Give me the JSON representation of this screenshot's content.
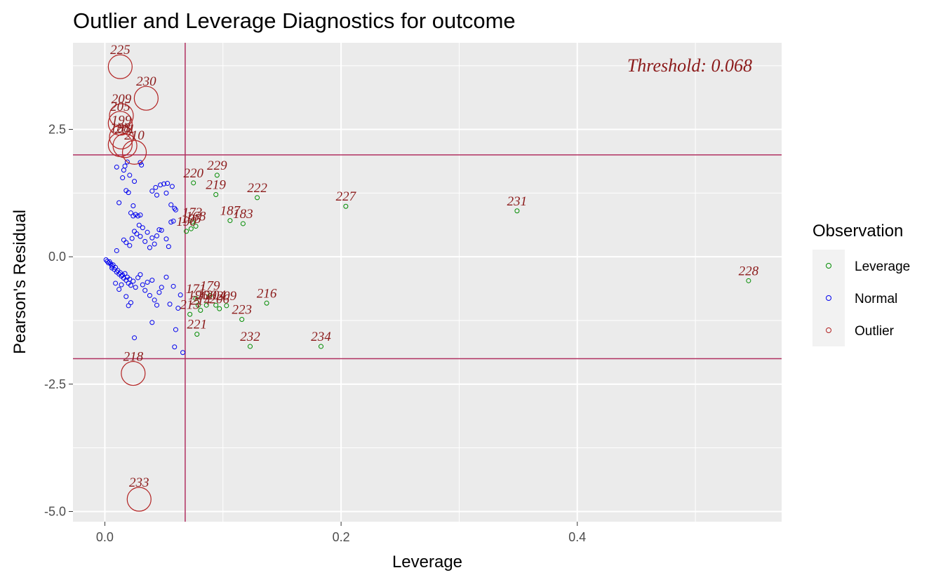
{
  "chart_data": {
    "type": "scatter",
    "title": "Outlier and Leverage Diagnostics for outcome",
    "xlabel": "Leverage",
    "ylabel": "Pearson's Residual",
    "xlim": [
      -0.027,
      0.573
    ],
    "ylim": [
      -5.2,
      4.2
    ],
    "x_ticks": [
      0.0,
      0.2,
      0.4
    ],
    "x_tick_labels": [
      "0.0",
      "0.2",
      "0.4"
    ],
    "y_ticks": [
      -5.0,
      -2.5,
      0.0,
      2.5
    ],
    "y_tick_labels": [
      "-5.0",
      "-2.5",
      "0.0",
      "2.5"
    ],
    "grid": true,
    "threshold_text": "Threshold: 0.068",
    "leverage_threshold": 0.068,
    "residual_thresholds": [
      -2,
      2
    ],
    "colors": {
      "panel": "#ebebeb",
      "grid": "#ffffff",
      "ref_line": "#b03060",
      "Leverage": "#008b00",
      "Normal": "#0000ee",
      "Outlier": "#b22222",
      "label": "#8b1a1a"
    },
    "legend": {
      "title": "Observation",
      "position": "right",
      "items": [
        "Leverage",
        "Normal",
        "Outlier"
      ]
    },
    "series": [
      {
        "name": "Outlier",
        "points": [
          {
            "x": 0.013,
            "y": 3.73,
            "label": "225"
          },
          {
            "x": 0.035,
            "y": 3.11,
            "label": "230"
          },
          {
            "x": 0.014,
            "y": 2.77,
            "label": "209"
          },
          {
            "x": 0.013,
            "y": 2.62,
            "label": "205"
          },
          {
            "x": 0.014,
            "y": 2.35,
            "label": "199"
          },
          {
            "x": 0.013,
            "y": 2.2,
            "label": "188"
          },
          {
            "x": 0.017,
            "y": 2.18,
            "label": "201"
          },
          {
            "x": 0.025,
            "y": 2.05,
            "label": "210"
          },
          {
            "x": 0.024,
            "y": -2.29,
            "label": "218"
          },
          {
            "x": 0.029,
            "y": -4.76,
            "label": "233"
          }
        ]
      },
      {
        "name": "Leverage",
        "points": [
          {
            "x": 0.075,
            "y": 1.45,
            "label": "220"
          },
          {
            "x": 0.095,
            "y": 1.6,
            "label": "229"
          },
          {
            "x": 0.094,
            "y": 1.22,
            "label": "219"
          },
          {
            "x": 0.129,
            "y": 1.16,
            "label": "222"
          },
          {
            "x": 0.204,
            "y": 0.99,
            "label": "227"
          },
          {
            "x": 0.349,
            "y": 0.9,
            "label": "231"
          },
          {
            "x": 0.106,
            "y": 0.71,
            "label": "187"
          },
          {
            "x": 0.117,
            "y": 0.65,
            "label": "183"
          },
          {
            "x": 0.074,
            "y": 0.68,
            "label": "173"
          },
          {
            "x": 0.077,
            "y": 0.6,
            "label": "168"
          },
          {
            "x": 0.073,
            "y": 0.55,
            "label": "195"
          },
          {
            "x": 0.069,
            "y": 0.5,
            "label": "190"
          },
          {
            "x": 0.545,
            "y": -0.47,
            "label": "228"
          },
          {
            "x": 0.077,
            "y": -0.82,
            "label": "171"
          },
          {
            "x": 0.089,
            "y": -0.76,
            "label": "179"
          },
          {
            "x": 0.137,
            "y": -0.91,
            "label": "216"
          },
          {
            "x": 0.079,
            "y": -0.95,
            "label": "196"
          },
          {
            "x": 0.086,
            "y": -0.95,
            "label": "200"
          },
          {
            "x": 0.094,
            "y": -0.95,
            "label": "204"
          },
          {
            "x": 0.097,
            "y": -1.02,
            "label": "206"
          },
          {
            "x": 0.103,
            "y": -0.96,
            "label": "209"
          },
          {
            "x": 0.081,
            "y": -1.05,
            "label": "214"
          },
          {
            "x": 0.116,
            "y": -1.23,
            "label": "223"
          },
          {
            "x": 0.072,
            "y": -1.13,
            "label": "213"
          },
          {
            "x": 0.078,
            "y": -1.52,
            "label": "221"
          },
          {
            "x": 0.123,
            "y": -1.76,
            "label": "232"
          },
          {
            "x": 0.183,
            "y": -1.76,
            "label": "234"
          }
        ]
      },
      {
        "name": "Normal",
        "points": [
          {
            "x": 0.001,
            "y": -0.06
          },
          {
            "x": 0.002,
            "y": -0.09
          },
          {
            "x": 0.003,
            "y": -0.12
          },
          {
            "x": 0.004,
            "y": -0.1
          },
          {
            "x": 0.005,
            "y": -0.14
          },
          {
            "x": 0.006,
            "y": -0.18
          },
          {
            "x": 0.006,
            "y": -0.22
          },
          {
            "x": 0.007,
            "y": -0.16
          },
          {
            "x": 0.008,
            "y": -0.25
          },
          {
            "x": 0.009,
            "y": -0.21
          },
          {
            "x": 0.01,
            "y": -0.3
          },
          {
            "x": 0.011,
            "y": -0.27
          },
          {
            "x": 0.012,
            "y": -0.34
          },
          {
            "x": 0.013,
            "y": -0.31
          },
          {
            "x": 0.014,
            "y": -0.38
          },
          {
            "x": 0.015,
            "y": -0.36
          },
          {
            "x": 0.016,
            "y": -0.42
          },
          {
            "x": 0.017,
            "y": -0.33
          },
          {
            "x": 0.018,
            "y": -0.46
          },
          {
            "x": 0.019,
            "y": -0.4
          },
          {
            "x": 0.02,
            "y": -0.52
          },
          {
            "x": 0.021,
            "y": -0.44
          },
          {
            "x": 0.022,
            "y": -0.56
          },
          {
            "x": 0.024,
            "y": -0.48
          },
          {
            "x": 0.026,
            "y": -0.6
          },
          {
            "x": 0.028,
            "y": -0.41
          },
          {
            "x": 0.03,
            "y": -0.35
          },
          {
            "x": 0.032,
            "y": -0.55
          },
          {
            "x": 0.034,
            "y": -0.66
          },
          {
            "x": 0.036,
            "y": -0.5
          },
          {
            "x": 0.038,
            "y": -0.76
          },
          {
            "x": 0.04,
            "y": -0.46
          },
          {
            "x": 0.042,
            "y": -0.85
          },
          {
            "x": 0.044,
            "y": -0.95
          },
          {
            "x": 0.046,
            "y": -0.7
          },
          {
            "x": 0.048,
            "y": -0.6
          },
          {
            "x": 0.052,
            "y": -0.4
          },
          {
            "x": 0.055,
            "y": -0.93
          },
          {
            "x": 0.058,
            "y": -0.58
          },
          {
            "x": 0.06,
            "y": -1.43
          },
          {
            "x": 0.059,
            "y": -1.77
          },
          {
            "x": 0.066,
            "y": -1.88
          },
          {
            "x": 0.062,
            "y": -1.01
          },
          {
            "x": 0.064,
            "y": -0.75
          },
          {
            "x": 0.04,
            "y": -1.29
          },
          {
            "x": 0.025,
            "y": -1.59
          },
          {
            "x": 0.02,
            "y": -0.96
          },
          {
            "x": 0.022,
            "y": -0.9
          },
          {
            "x": 0.012,
            "y": -0.64
          },
          {
            "x": 0.009,
            "y": -0.52
          },
          {
            "x": 0.014,
            "y": -0.55
          },
          {
            "x": 0.018,
            "y": -0.78
          },
          {
            "x": 0.01,
            "y": 0.12
          },
          {
            "x": 0.016,
            "y": 0.33
          },
          {
            "x": 0.018,
            "y": 0.28
          },
          {
            "x": 0.021,
            "y": 0.22
          },
          {
            "x": 0.023,
            "y": 0.36
          },
          {
            "x": 0.025,
            "y": 0.5
          },
          {
            "x": 0.027,
            "y": 0.45
          },
          {
            "x": 0.029,
            "y": 0.62
          },
          {
            "x": 0.03,
            "y": 0.4
          },
          {
            "x": 0.032,
            "y": 0.57
          },
          {
            "x": 0.034,
            "y": 0.3
          },
          {
            "x": 0.036,
            "y": 0.48
          },
          {
            "x": 0.038,
            "y": 0.18
          },
          {
            "x": 0.04,
            "y": 0.37
          },
          {
            "x": 0.042,
            "y": 0.25
          },
          {
            "x": 0.044,
            "y": 0.41
          },
          {
            "x": 0.046,
            "y": 0.53
          },
          {
            "x": 0.048,
            "y": 0.52
          },
          {
            "x": 0.052,
            "y": 0.35
          },
          {
            "x": 0.054,
            "y": 0.2
          },
          {
            "x": 0.056,
            "y": 0.68
          },
          {
            "x": 0.058,
            "y": 0.7
          },
          {
            "x": 0.024,
            "y": 0.8
          },
          {
            "x": 0.026,
            "y": 0.83
          },
          {
            "x": 0.028,
            "y": 0.8
          },
          {
            "x": 0.03,
            "y": 0.82
          },
          {
            "x": 0.022,
            "y": 0.86
          },
          {
            "x": 0.024,
            "y": 1.0
          },
          {
            "x": 0.012,
            "y": 1.06
          },
          {
            "x": 0.015,
            "y": 1.55
          },
          {
            "x": 0.018,
            "y": 1.3
          },
          {
            "x": 0.02,
            "y": 1.26
          },
          {
            "x": 0.016,
            "y": 1.7
          },
          {
            "x": 0.019,
            "y": 1.86
          },
          {
            "x": 0.021,
            "y": 1.6
          },
          {
            "x": 0.025,
            "y": 1.48
          },
          {
            "x": 0.017,
            "y": 1.78
          },
          {
            "x": 0.01,
            "y": 1.76
          },
          {
            "x": 0.03,
            "y": 1.85
          },
          {
            "x": 0.031,
            "y": 1.8
          },
          {
            "x": 0.043,
            "y": 1.36
          },
          {
            "x": 0.044,
            "y": 1.21
          },
          {
            "x": 0.04,
            "y": 1.29
          },
          {
            "x": 0.047,
            "y": 1.41
          },
          {
            "x": 0.05,
            "y": 1.43
          },
          {
            "x": 0.052,
            "y": 1.25
          },
          {
            "x": 0.057,
            "y": 1.38
          },
          {
            "x": 0.053,
            "y": 1.44
          },
          {
            "x": 0.056,
            "y": 1.02
          },
          {
            "x": 0.059,
            "y": 0.95
          },
          {
            "x": 0.06,
            "y": 0.92
          }
        ]
      }
    ]
  }
}
